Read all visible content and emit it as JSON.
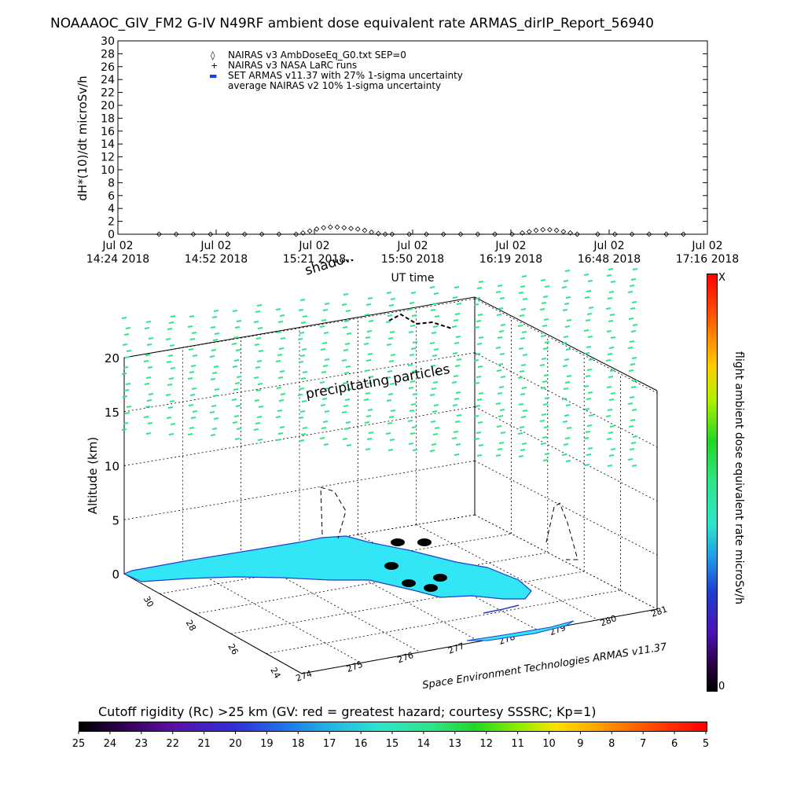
{
  "title": "NOAAAOC_GIV_FM2 G-IV   N49RF  ambient dose equivalent rate ARMAS_dirIP_Report_56940",
  "colors": {
    "background": "#ffffff",
    "axis": "#000000",
    "ocean": "#ffffff",
    "land": "#33e6f5",
    "coast": "#1f3fd0",
    "particles": "#2ee58a",
    "legend_blue": "#1f3fd0"
  },
  "top_chart": {
    "legend": [
      {
        "symbol": "◊",
        "label": "NAIRAS v3 AmbDoseEq_G0.txt SEP=0"
      },
      {
        "symbol": "+",
        "label": "NAIRAS v3 NASA LaRC runs"
      },
      {
        "symbol": "▬",
        "label": "SET ARMAS v11.37 with 27% 1-sigma uncertainty"
      },
      {
        "symbol": "",
        "label": "average NAIRAS v2 10% 1-sigma uncertainty"
      }
    ],
    "xlabel": "UT time"
  },
  "chart_data": [
    {
      "type": "line",
      "title": "",
      "ylabel": "dH*(10)/dt microSv/h",
      "xlabel": "UT time",
      "ylim": [
        0,
        30
      ],
      "yticks": [
        0,
        2,
        4,
        6,
        8,
        10,
        12,
        14,
        16,
        18,
        20,
        22,
        24,
        26,
        28,
        30
      ],
      "xticks": [
        {
          "line1": "Jul 02",
          "line2": "14:24 2018"
        },
        {
          "line1": "Jul 02",
          "line2": "14:52 2018"
        },
        {
          "line1": "Jul 02",
          "line2": "15:21 2018"
        },
        {
          "line1": "Jul 02",
          "line2": "15:50 2018"
        },
        {
          "line1": "Jul 02",
          "line2": "16:19 2018"
        },
        {
          "line1": "Jul 02",
          "line2": "16:48 2018"
        },
        {
          "line1": "Jul 02",
          "line2": "17:16 2018"
        }
      ],
      "x_minutes_range": [
        0,
        172
      ],
      "series": [
        {
          "name": "NAIRAS v3 AmbDoseEq_G0.txt SEP=0",
          "x_minutes": [
            12,
            17,
            22,
            27,
            32,
            37,
            42,
            47,
            52,
            54,
            56,
            58,
            60,
            62,
            64,
            66,
            68,
            70,
            72,
            74,
            76,
            78,
            80,
            85,
            90,
            95,
            100,
            105,
            110,
            115,
            118,
            120,
            122,
            124,
            126,
            128,
            130,
            132,
            134,
            140,
            145,
            150,
            155,
            160,
            165
          ],
          "values": [
            0,
            0,
            0,
            0,
            0,
            0,
            0,
            0,
            0,
            0.2,
            0.5,
            0.8,
            1.0,
            1.1,
            1.1,
            1.0,
            0.9,
            0.8,
            0.6,
            0.3,
            0.1,
            0,
            0,
            0,
            0,
            0,
            0,
            0,
            0,
            0,
            0.2,
            0.4,
            0.6,
            0.7,
            0.7,
            0.6,
            0.4,
            0.2,
            0,
            0,
            0,
            0,
            0,
            0,
            0
          ]
        }
      ]
    },
    {
      "type": "scatter",
      "title": "",
      "x_axis_label": "",
      "y_axis_label": "Altitude (km)",
      "z_ticks": [
        0,
        5,
        10,
        15,
        20
      ],
      "longitude_ticks": [
        274,
        275,
        276,
        277,
        278,
        279,
        280,
        281
      ],
      "latitude_ticks": [
        24,
        26,
        28,
        30
      ],
      "annotations": [
        "shadowed flight path",
        "precipitating particles"
      ],
      "credit": "Space Environment Technologies ARMAS v11.37",
      "side_colorbar": {
        "label": "flight ambient dose equivalent rate microSv/h",
        "top_label": "X",
        "bottom_label": "0"
      },
      "bottom_colorbar": {
        "label": "Cutoff rigidity (Rc) >25 km (GV: red = greatest hazard; courtesy SSSRC; Kp=1)",
        "ticks": [
          25,
          24,
          23,
          22,
          21,
          20,
          19,
          18,
          17,
          16,
          15,
          14,
          13,
          12,
          11,
          10,
          9,
          8,
          7,
          6,
          5
        ]
      }
    }
  ]
}
